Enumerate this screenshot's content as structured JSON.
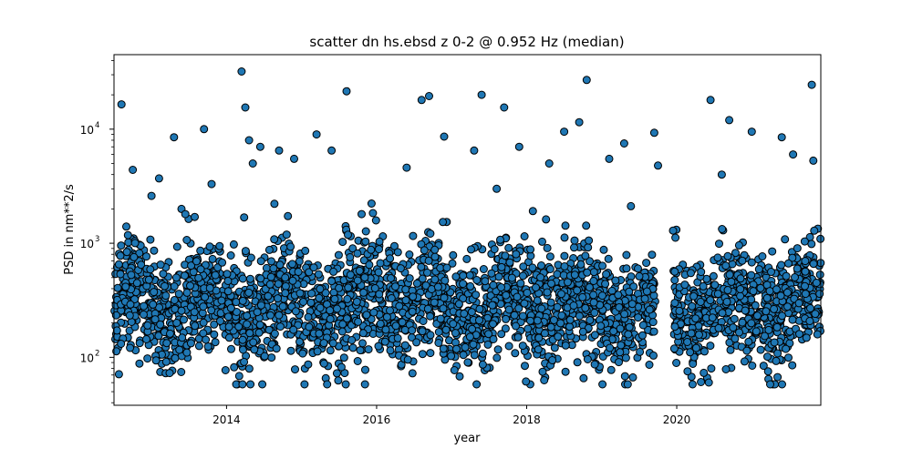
{
  "chart_data": {
    "type": "scatter",
    "title": "scatter dn hs.ebsd z 0-2 @ 0.952 Hz (median)",
    "xlabel": "year",
    "ylabel": "PSD in nm**2/s",
    "xlim": [
      2012.5,
      2021.92
    ],
    "ylim": [
      38,
      45000
    ],
    "yscale": "log",
    "x_ticks": [
      2014,
      2016,
      2018,
      2020
    ],
    "x_tick_labels": [
      "2014",
      "2016",
      "2018",
      "2020"
    ],
    "y_ticks": [
      100,
      1000,
      10000
    ],
    "y_tick_labels": [
      "10",
      "10",
      "10"
    ],
    "y_tick_exponents": [
      "2",
      "3",
      "4"
    ],
    "grid": false,
    "legend": "none",
    "series": [
      {
        "marker_color": "#1f77b4",
        "edge_color": "#000000",
        "outliers": {
          "x": [
            2012.6,
            2012.75,
            2013.0,
            2013.1,
            2013.3,
            2013.4,
            2013.45,
            2013.7,
            2013.8,
            2014.2,
            2014.25,
            2014.3,
            2014.35,
            2014.45,
            2014.7,
            2014.9,
            2015.2,
            2015.4,
            2015.6,
            2015.8,
            2016.4,
            2016.6,
            2016.7,
            2016.9,
            2017.3,
            2017.4,
            2017.6,
            2017.7,
            2017.9,
            2018.3,
            2018.5,
            2018.7,
            2018.8,
            2019.1,
            2019.3,
            2019.7,
            2019.75,
            2020.45,
            2020.6,
            2020.7,
            2021.0,
            2021.4,
            2021.55,
            2021.8,
            2021.82
          ],
          "y": [
            16500,
            4400,
            2600,
            3700,
            8500,
            2000,
            1800,
            10000,
            3300,
            32000,
            15500,
            8000,
            5000,
            7000,
            6500,
            5500,
            9000,
            6500,
            21500,
            1800,
            4600,
            18000,
            19500,
            8600,
            6500,
            20000,
            3000,
            15500,
            7000,
            5000,
            9500,
            11500,
            27000,
            5500,
            7500,
            9300,
            4800,
            18000,
            4000,
            12000,
            9500,
            8500,
            6000,
            24500,
            5300
          ]
        }
      }
    ]
  }
}
